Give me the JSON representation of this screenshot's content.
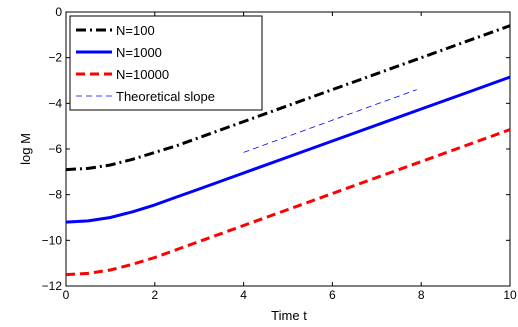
{
  "chart_data": {
    "type": "line",
    "title": "",
    "xlabel": "Time t",
    "ylabel": "log M",
    "xlim": [
      0,
      10
    ],
    "ylim": [
      -12,
      0
    ],
    "xticks": [
      0,
      2,
      4,
      6,
      8,
      10
    ],
    "yticks": [
      -12,
      -10,
      -8,
      -6,
      -4,
      -2,
      0
    ],
    "xtick_labels": [
      "0",
      "2",
      "4",
      "6",
      "8",
      "10"
    ],
    "ytick_labels": [
      "−12",
      "−10",
      "−8",
      "−6",
      "−4",
      "−2",
      "0"
    ],
    "grid": false,
    "legend_position": "top-left",
    "series": [
      {
        "name": "N=100",
        "color": "#000000",
        "style": "dash-dot",
        "x": [
          0,
          0.5,
          1,
          1.5,
          2,
          2.5,
          3,
          4,
          5,
          6,
          7,
          8,
          9,
          10
        ],
        "y": [
          -6.9,
          -6.85,
          -6.7,
          -6.45,
          -6.15,
          -5.85,
          -5.5,
          -4.8,
          -4.1,
          -3.4,
          -2.7,
          -2.0,
          -1.3,
          -0.6
        ]
      },
      {
        "name": "N=1000",
        "color": "#0000ff",
        "style": "solid",
        "x": [
          0,
          0.5,
          1,
          1.5,
          2,
          2.5,
          3,
          4,
          5,
          6,
          7,
          8,
          9,
          10
        ],
        "y": [
          -9.2,
          -9.15,
          -9.0,
          -8.75,
          -8.45,
          -8.1,
          -7.75,
          -7.05,
          -6.35,
          -5.65,
          -4.95,
          -4.25,
          -3.55,
          -2.85
        ]
      },
      {
        "name": "N=10000",
        "color": "#ff0000",
        "style": "dashed",
        "x": [
          0,
          0.5,
          1,
          1.5,
          2,
          2.5,
          3,
          4,
          5,
          6,
          7,
          8,
          9,
          10
        ],
        "y": [
          -11.5,
          -11.45,
          -11.3,
          -11.05,
          -10.75,
          -10.4,
          -10.05,
          -9.35,
          -8.65,
          -7.95,
          -7.25,
          -6.55,
          -5.85,
          -5.15
        ]
      },
      {
        "name": "Theoretical slope",
        "color": "#0000ff",
        "style": "thin-dashed",
        "x": [
          4,
          7.9
        ],
        "y": [
          -6.15,
          -3.4
        ]
      }
    ]
  }
}
